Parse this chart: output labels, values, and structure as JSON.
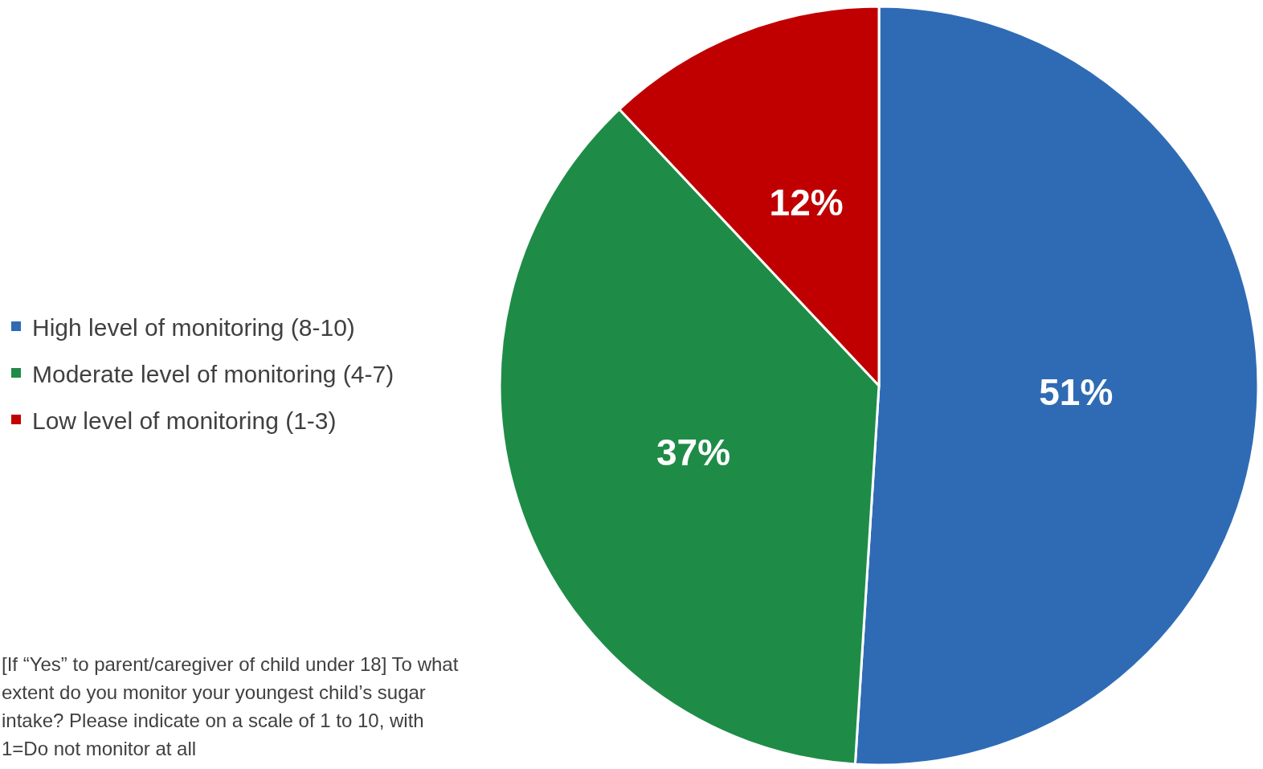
{
  "chart_data": {
    "type": "pie",
    "categories": [
      "High level of monitoring (8-10)",
      "Moderate level of monitoring (4-7)",
      "Low level of monitoring (1-3)"
    ],
    "values": [
      51,
      37,
      12
    ],
    "colors": [
      "#2f6bb5",
      "#1e8c47",
      "#c00000"
    ],
    "value_labels": [
      "51%",
      "37%",
      "12%"
    ],
    "legend": "left",
    "annotations": [
      "[If “Yes” to parent/caregiver of child under 18] To what extent do you monitor your youngest child’s sugar intake? Please indicate on a scale of 1 to 10, with 1=Do not monitor at all"
    ]
  }
}
